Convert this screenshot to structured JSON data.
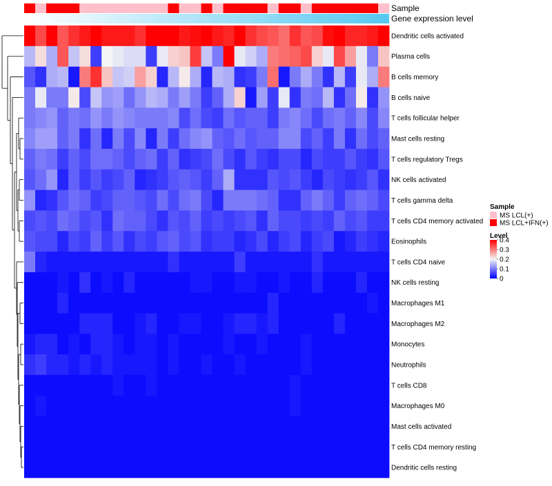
{
  "chart_data": {
    "type": "heatmap",
    "title": "",
    "annotation_tracks": [
      "Sample",
      "Gene expression level"
    ],
    "sample_groups": [
      1,
      0,
      1,
      1,
      1,
      0,
      0,
      0,
      0,
      0,
      0,
      0,
      0,
      1,
      0,
      0,
      1,
      0,
      1,
      1,
      1,
      1,
      0,
      1,
      1,
      0,
      1,
      1,
      1,
      1,
      1,
      1,
      0
    ],
    "expression_track_label": "Gene expression level",
    "rows": [
      "Dendritic cells activated",
      "Plasma cells",
      "B cells memory",
      "B cells naive",
      "T cells follicular helper",
      "Mast cells resting",
      "T cells regulatory  Tregs",
      "NK cells activated",
      "T cells gamma delta",
      "T cells CD4 memory activated",
      "Eosinophils",
      "T cells CD4 naive",
      "NK cells resting",
      "Macrophages M1",
      "Macrophages M2",
      "Monocytes",
      "Neutrophils",
      "T cells CD8",
      "Macrophages M0",
      "Mast cells activated",
      "T cells CD4 memory resting",
      "Dendritic cells resting"
    ],
    "values": [
      [
        0.4,
        0.34,
        0.4,
        0.33,
        0.36,
        0.38,
        0.4,
        0.38,
        0.38,
        0.38,
        0.36,
        0.4,
        0.4,
        0.4,
        0.38,
        0.39,
        0.4,
        0.38,
        0.37,
        0.4,
        0.36,
        0.34,
        0.33,
        0.31,
        0.36,
        0.33,
        0.34,
        0.39,
        0.4,
        0.37,
        0.37,
        0.38,
        0.4
      ],
      [
        0.15,
        0.22,
        0.14,
        0.33,
        0.16,
        0.22,
        0.05,
        0.2,
        0.19,
        0.18,
        0.18,
        0.05,
        0.19,
        0.23,
        0.24,
        0.35,
        0.16,
        0.1,
        0.4,
        0.19,
        0.17,
        0.14,
        0.3,
        0.31,
        0.32,
        0.34,
        0.23,
        0.19,
        0.34,
        0.27,
        0.19,
        0.1,
        0.24
      ],
      [
        0.07,
        0.04,
        0.14,
        0.15,
        0.02,
        0.3,
        0.36,
        0.24,
        0.16,
        0.17,
        0.27,
        0.23,
        0.03,
        0.15,
        0.21,
        0.14,
        0.03,
        0.15,
        0.14,
        0.04,
        0.05,
        0.1,
        0.31,
        0.02,
        0.1,
        0.14,
        0.1,
        0.04,
        0.15,
        0.05,
        0.19,
        0.14,
        0.3
      ],
      [
        0.1,
        0.19,
        0.1,
        0.1,
        0.21,
        0.06,
        0.16,
        0.12,
        0.13,
        0.09,
        0.12,
        0.15,
        0.14,
        0.1,
        0.13,
        0.1,
        0.05,
        0.08,
        0.14,
        0.23,
        0.02,
        0.13,
        0.05,
        0.19,
        0.04,
        0.1,
        0.09,
        0.15,
        0.04,
        0.09,
        0.21,
        0.04,
        0.12
      ],
      [
        0.1,
        0.11,
        0.12,
        0.08,
        0.1,
        0.09,
        0.12,
        0.1,
        0.12,
        0.11,
        0.1,
        0.1,
        0.1,
        0.11,
        0.06,
        0.09,
        0.06,
        0.05,
        0.09,
        0.07,
        0.08,
        0.08,
        0.05,
        0.1,
        0.11,
        0.09,
        0.06,
        0.09,
        0.1,
        0.08,
        0.11,
        0.06,
        0.11
      ],
      [
        0.11,
        0.13,
        0.13,
        0.08,
        0.1,
        0.04,
        0.09,
        0.03,
        0.1,
        0.06,
        0.11,
        0.03,
        0.1,
        0.05,
        0.09,
        0.11,
        0.12,
        0.08,
        0.07,
        0.09,
        0.07,
        0.08,
        0.08,
        0.11,
        0.11,
        0.06,
        0.08,
        0.05,
        0.1,
        0.04,
        0.09,
        0.06,
        0.08
      ],
      [
        0.08,
        0.1,
        0.09,
        0.05,
        0.08,
        0.06,
        0.09,
        0.09,
        0.08,
        0.06,
        0.08,
        0.09,
        0.05,
        0.08,
        0.04,
        0.05,
        0.06,
        0.09,
        0.06,
        0.04,
        0.07,
        0.05,
        0.04,
        0.06,
        0.06,
        0.03,
        0.06,
        0.05,
        0.05,
        0.07,
        0.05,
        0.04,
        0.07
      ],
      [
        0.07,
        0.09,
        0.12,
        0.03,
        0.08,
        0.05,
        0.07,
        0.05,
        0.06,
        0.08,
        0.03,
        0.04,
        0.05,
        0.07,
        0.08,
        0.07,
        0.05,
        0.08,
        0.14,
        0.04,
        0.04,
        0.04,
        0.07,
        0.06,
        0.07,
        0.05,
        0.03,
        0.06,
        0.05,
        0.04,
        0.05,
        0.07,
        0.04
      ],
      [
        0.12,
        0.03,
        0.04,
        0.07,
        0.09,
        0.08,
        0.05,
        0.06,
        0.08,
        0.08,
        0.07,
        0.06,
        0.09,
        0.06,
        0.09,
        0.1,
        0.06,
        0.03,
        0.1,
        0.1,
        0.1,
        0.09,
        0.08,
        0.04,
        0.04,
        0.08,
        0.1,
        0.08,
        0.05,
        0.08,
        0.09,
        0.08,
        0.06
      ],
      [
        0.06,
        0.07,
        0.06,
        0.09,
        0.08,
        0.06,
        0.07,
        0.04,
        0.09,
        0.08,
        0.08,
        0.06,
        0.04,
        0.07,
        0.06,
        0.08,
        0.05,
        0.06,
        0.05,
        0.06,
        0.07,
        0.04,
        0.08,
        0.06,
        0.06,
        0.05,
        0.06,
        0.05,
        0.08,
        0.06,
        0.07,
        0.05,
        0.05
      ],
      [
        0.07,
        0.06,
        0.06,
        0.03,
        0.06,
        0.05,
        0.08,
        0.05,
        0.07,
        0.04,
        0.06,
        0.05,
        0.07,
        0.08,
        0.06,
        0.07,
        0.04,
        0.05,
        0.05,
        0.03,
        0.04,
        0.06,
        0.03,
        0.05,
        0.06,
        0.03,
        0.05,
        0.06,
        0.02,
        0.03,
        0.05,
        0.04,
        0.03
      ],
      [
        0.1,
        0.03,
        0.02,
        0.02,
        0.02,
        0.02,
        0.02,
        0.02,
        0.02,
        0.02,
        0.02,
        0.02,
        0.02,
        0.04,
        0.02,
        0.02,
        0.02,
        0.02,
        0.02,
        0.05,
        0.02,
        0.02,
        0.02,
        0.02,
        0.02,
        0.02,
        0.04,
        0.02,
        0.02,
        0.02,
        0.02,
        0.02,
        0.02
      ],
      [
        0.01,
        0.01,
        0.01,
        0.02,
        0.01,
        0.04,
        0.01,
        0.02,
        0.01,
        0.03,
        0.01,
        0.01,
        0.01,
        0.01,
        0.01,
        0.02,
        0.02,
        0.01,
        0.01,
        0.02,
        0.02,
        0.01,
        0.01,
        0.02,
        0.01,
        0.01,
        0.03,
        0.01,
        0.01,
        0.01,
        0.03,
        0.01,
        0.01
      ],
      [
        0.01,
        0.01,
        0.01,
        0.03,
        0.01,
        0.01,
        0.01,
        0.01,
        0.01,
        0.01,
        0.01,
        0.01,
        0.01,
        0.01,
        0.01,
        0.01,
        0.01,
        0.01,
        0.01,
        0.01,
        0.01,
        0.01,
        0.03,
        0.01,
        0.01,
        0.01,
        0.01,
        0.01,
        0.01,
        0.01,
        0.01,
        0.02,
        0.01
      ],
      [
        0.01,
        0.01,
        0.01,
        0.01,
        0.01,
        0.03,
        0.03,
        0.03,
        0.01,
        0.01,
        0.02,
        0.03,
        0.01,
        0.01,
        0.02,
        0.02,
        0.01,
        0.01,
        0.02,
        0.03,
        0.03,
        0.02,
        0.03,
        0.01,
        0.01,
        0.01,
        0.01,
        0.01,
        0.03,
        0.01,
        0.01,
        0.01,
        0.01
      ],
      [
        0.02,
        0.03,
        0.03,
        0.01,
        0.02,
        0.01,
        0.03,
        0.03,
        0.02,
        0.01,
        0.02,
        0.02,
        0.01,
        0.02,
        0.01,
        0.01,
        0.01,
        0.01,
        0.02,
        0.01,
        0.01,
        0.02,
        0.01,
        0.01,
        0.01,
        0.02,
        0.01,
        0.01,
        0.01,
        0.01,
        0.01,
        0.01,
        0.01
      ],
      [
        0.04,
        0.05,
        0.03,
        0.03,
        0.02,
        0.03,
        0.02,
        0.03,
        0.02,
        0.02,
        0.02,
        0.02,
        0.01,
        0.02,
        0.01,
        0.01,
        0.02,
        0.01,
        0.01,
        0.02,
        0.01,
        0.01,
        0.01,
        0.01,
        0.01,
        0.02,
        0.01,
        0.01,
        0.01,
        0.01,
        0.01,
        0.01,
        0.01
      ],
      [
        0.01,
        0.01,
        0.01,
        0.01,
        0.01,
        0.01,
        0.01,
        0.01,
        0.02,
        0.01,
        0.01,
        0.02,
        0.01,
        0.01,
        0.01,
        0.01,
        0.01,
        0.01,
        0.01,
        0.01,
        0.01,
        0.01,
        0.01,
        0.01,
        0.02,
        0.01,
        0.01,
        0.01,
        0.01,
        0.01,
        0.01,
        0.01,
        0.01
      ],
      [
        0.01,
        0.02,
        0.01,
        0.01,
        0.01,
        0.01,
        0.01,
        0.01,
        0.01,
        0.01,
        0.01,
        0.01,
        0.01,
        0.01,
        0.01,
        0.01,
        0.01,
        0.01,
        0.01,
        0.01,
        0.01,
        0.01,
        0.01,
        0.01,
        0.02,
        0.01,
        0.01,
        0.01,
        0.01,
        0.01,
        0.01,
        0.01,
        0.01
      ],
      [
        0.01,
        0.01,
        0.01,
        0.01,
        0.01,
        0.01,
        0.01,
        0.01,
        0.01,
        0.01,
        0.01,
        0.01,
        0.01,
        0.01,
        0.01,
        0.01,
        0.01,
        0.01,
        0.01,
        0.01,
        0.01,
        0.01,
        0.01,
        0.01,
        0.01,
        0.01,
        0.01,
        0.01,
        0.01,
        0.01,
        0.01,
        0.01,
        0.01
      ],
      [
        0.01,
        0.01,
        0.01,
        0.01,
        0.01,
        0.01,
        0.01,
        0.01,
        0.01,
        0.01,
        0.01,
        0.01,
        0.01,
        0.01,
        0.01,
        0.01,
        0.01,
        0.01,
        0.01,
        0.01,
        0.01,
        0.01,
        0.01,
        0.01,
        0.01,
        0.01,
        0.01,
        0.01,
        0.01,
        0.01,
        0.01,
        0.01,
        0.01
      ],
      [
        0.01,
        0.01,
        0.01,
        0.01,
        0.01,
        0.01,
        0.01,
        0.01,
        0.01,
        0.01,
        0.01,
        0.01,
        0.01,
        0.01,
        0.01,
        0.01,
        0.01,
        0.01,
        0.01,
        0.01,
        0.01,
        0.01,
        0.01,
        0.01,
        0.01,
        0.01,
        0.01,
        0.01,
        0.01,
        0.01,
        0.01,
        0.01,
        0.01
      ]
    ],
    "color_scale": {
      "min": 0,
      "max": 0.4,
      "low": "#0000ff",
      "mid": "#f5f5f5",
      "high": "#ff0000"
    },
    "legend": {
      "sample_title": "Sample",
      "sample_entries": [
        {
          "label": "MS LCL(+)",
          "color": "#ffc0cb"
        },
        {
          "label": "MS LCL+IFN(+)",
          "color": "#ff0000"
        }
      ],
      "level_title": "Level",
      "level_ticks": [
        0.4,
        0.3,
        0.2,
        0.1,
        0
      ],
      "level_tick_labels": [
        "0.4",
        "0.3",
        "0.2",
        "0.1",
        "0"
      ],
      "position": "right"
    },
    "dendrogram": "rows"
  }
}
